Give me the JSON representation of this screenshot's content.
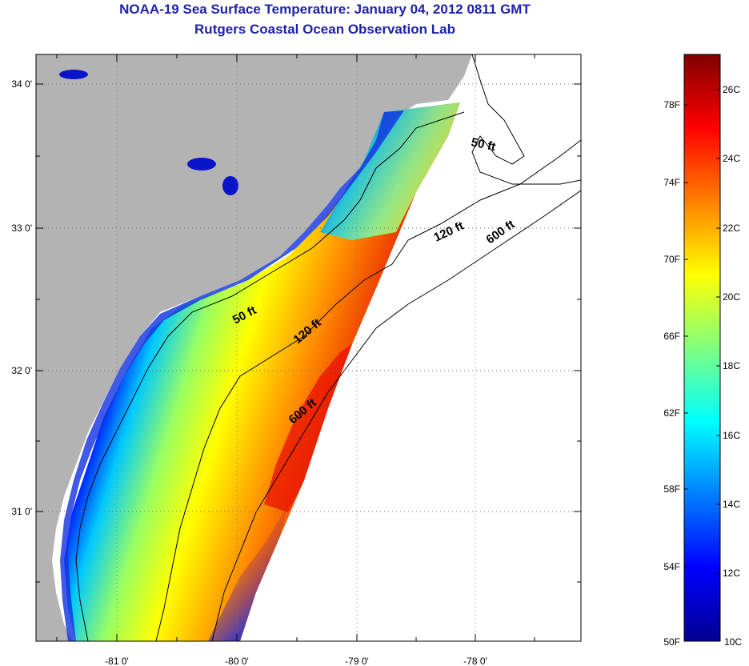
{
  "title": "NOAA-19 Sea Surface Temperature:  January 04, 2012 0811 GMT",
  "subtitle": "Rutgers Coastal Ocean Observation Lab",
  "map": {
    "longitude_ticks": [
      "-81 0'",
      "-80 0'",
      "-79 0'",
      "-78 0'"
    ],
    "latitude_ticks": [
      "34 0'",
      "33 0'",
      "32 0'",
      "31 0'"
    ],
    "contour_labels": [
      "50 ft",
      "120 ft",
      "600 ft",
      "50 ft",
      "120 ft",
      "600 ft"
    ],
    "colors": {
      "land": "#b3b3b3",
      "ocean_nodata": "#ffffff"
    }
  },
  "colorbar": {
    "fahrenheit_labels": [
      "78F",
      "74F",
      "70F",
      "66F",
      "62F",
      "58F",
      "54F",
      "50F"
    ],
    "celsius_labels": [
      "26C",
      "24C",
      "22C",
      "20C",
      "18C",
      "16C",
      "14C",
      "12C",
      "10C"
    ],
    "range_celsius": [
      10,
      27
    ]
  }
}
